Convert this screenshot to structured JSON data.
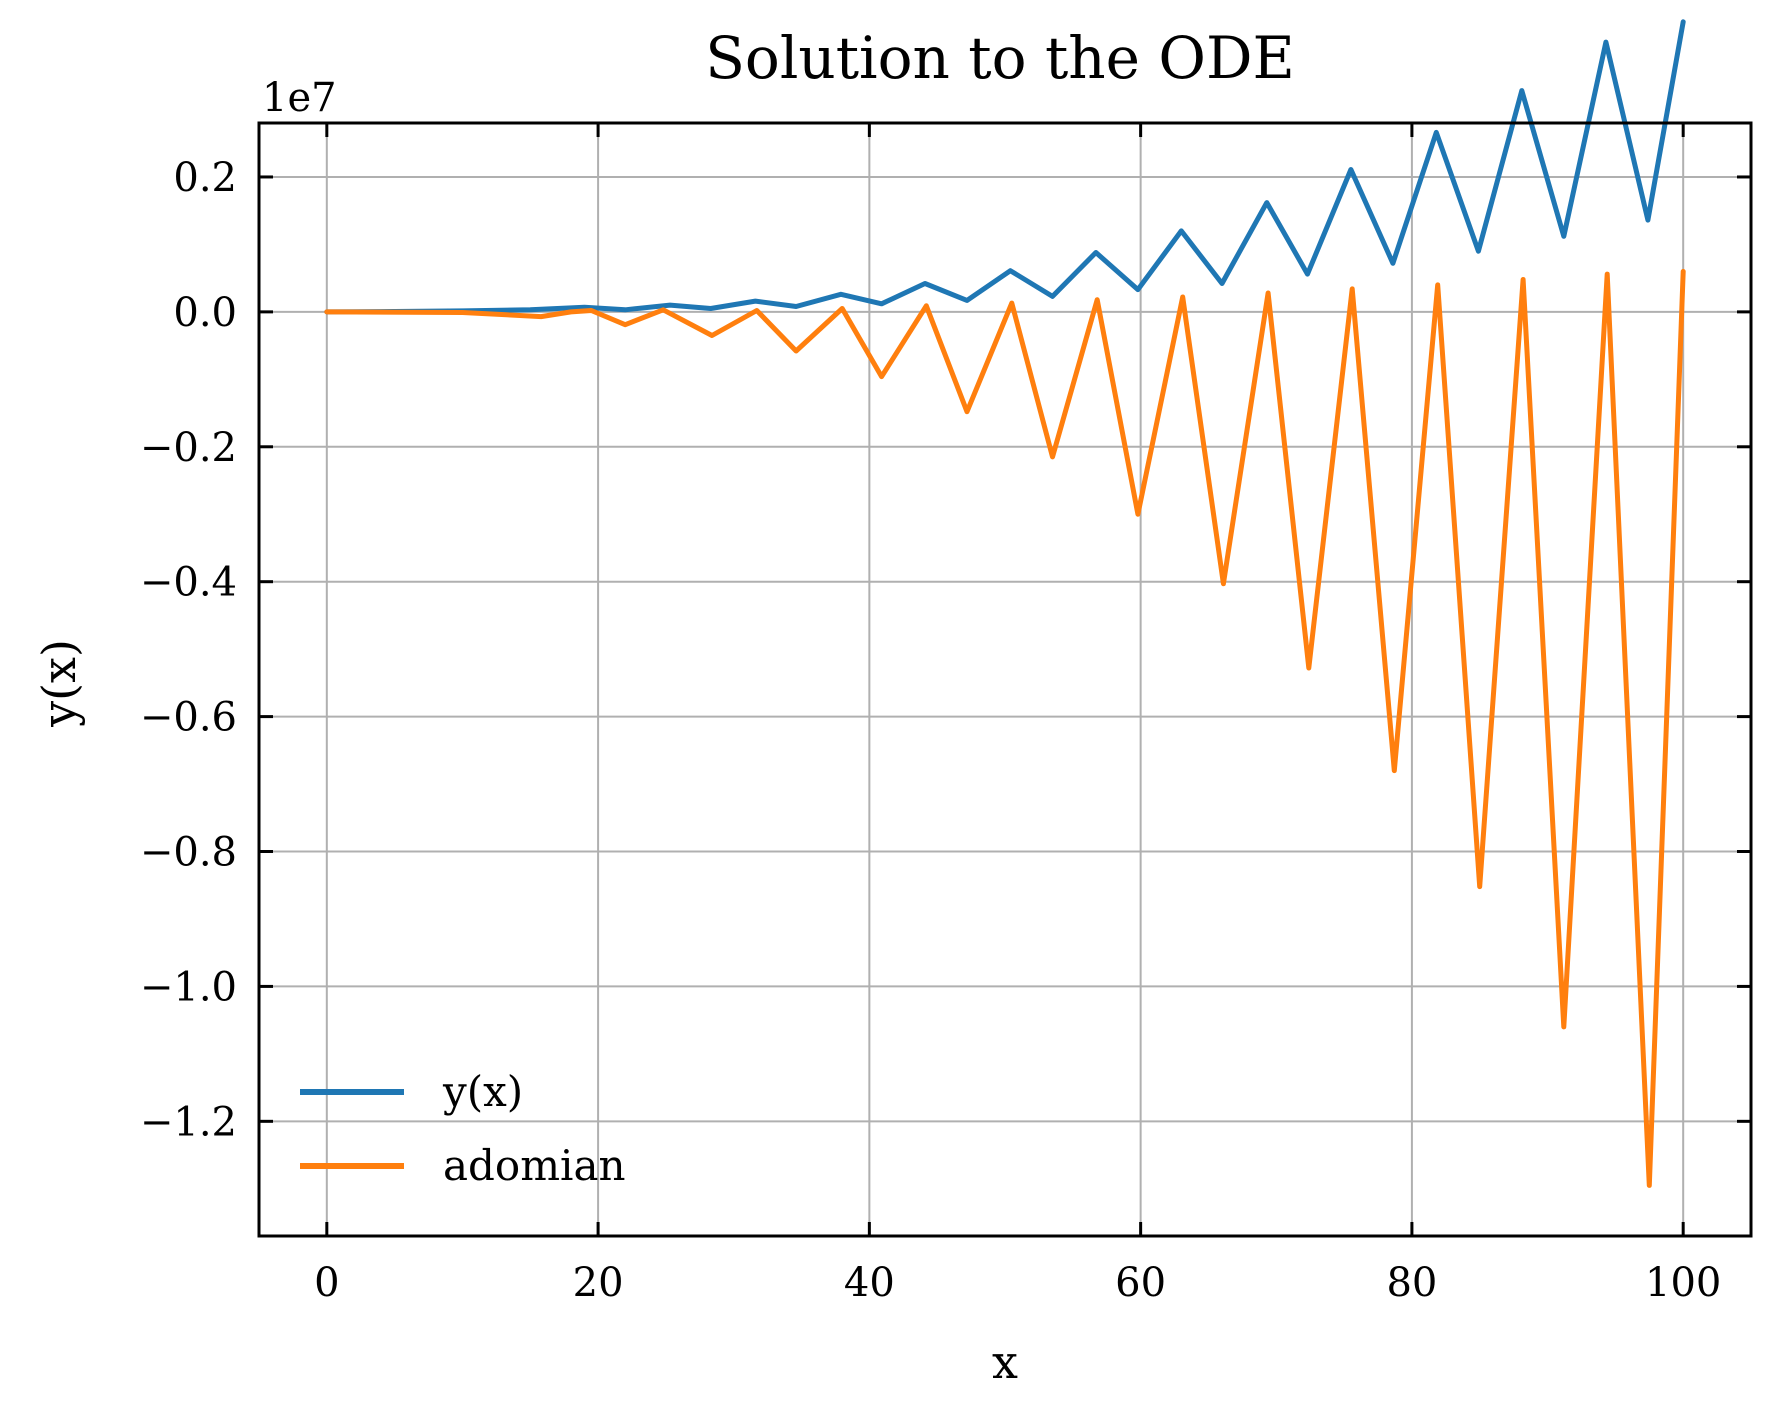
{
  "chart_data": {
    "type": "line",
    "title": "Solution to the ODE",
    "xlabel": "x",
    "ylabel": "y(x)",
    "y_offset_label": "1e7",
    "y_scale": 10000000,
    "xlim": [
      -5,
      105
    ],
    "ylim": [
      -13700000,
      2800000
    ],
    "x_ticks": [
      0,
      20,
      40,
      60,
      80,
      100
    ],
    "x_tick_labels": [
      "0",
      "20",
      "40",
      "60",
      "80",
      "100"
    ],
    "y_ticks": [
      2000000,
      0,
      -2000000,
      -4000000,
      -6000000,
      -8000000,
      -10000000,
      -12000000
    ],
    "y_tick_labels": [
      "0.2",
      "0.0",
      "−0.2",
      "−0.4",
      "−0.6",
      "−0.8",
      "−1.0",
      "−1.2"
    ],
    "grid": true,
    "legend_position": "lower-left",
    "series": [
      {
        "name": "y(x)",
        "color": "#1f77b4",
        "points": [
          [
            0,
            0
          ],
          [
            5,
            5000
          ],
          [
            10,
            15000
          ],
          [
            15,
            30000
          ],
          [
            19,
            70000
          ],
          [
            22,
            30000
          ],
          [
            25.3,
            100000
          ],
          [
            28.3,
            50000
          ],
          [
            31.6,
            160000
          ],
          [
            34.6,
            80000
          ],
          [
            37.9,
            260000
          ],
          [
            40.9,
            120000
          ],
          [
            44.1,
            420000
          ],
          [
            47.2,
            170000
          ],
          [
            50.4,
            610000
          ],
          [
            53.5,
            230000
          ],
          [
            56.7,
            880000
          ],
          [
            59.8,
            330000
          ],
          [
            63.0,
            1200000
          ],
          [
            66.0,
            420000
          ],
          [
            69.3,
            1620000
          ],
          [
            72.3,
            560000
          ],
          [
            75.5,
            2110000
          ],
          [
            78.6,
            720000
          ],
          [
            81.8,
            2660000
          ],
          [
            84.9,
            900000
          ],
          [
            88.1,
            3280000
          ],
          [
            91.2,
            1120000
          ],
          [
            94.3,
            4000000
          ],
          [
            97.4,
            1360000
          ],
          [
            100,
            4300000
          ]
        ]
      },
      {
        "name": "adomian",
        "color": "#ff7f0e",
        "points": [
          [
            0,
            0
          ],
          [
            10,
            -10000
          ],
          [
            15.8,
            -70000
          ],
          [
            18,
            0
          ],
          [
            19.5,
            20000
          ],
          [
            22,
            -190000
          ],
          [
            24.8,
            30000
          ],
          [
            28.4,
            -350000
          ],
          [
            31.7,
            20000
          ],
          [
            34.6,
            -580000
          ],
          [
            38,
            50000
          ],
          [
            40.9,
            -960000
          ],
          [
            44.2,
            90000
          ],
          [
            47.2,
            -1480000
          ],
          [
            50.5,
            130000
          ],
          [
            53.5,
            -2150000
          ],
          [
            56.8,
            180000
          ],
          [
            59.8,
            -3000000
          ],
          [
            63.1,
            220000
          ],
          [
            66.1,
            -4030000
          ],
          [
            69.4,
            280000
          ],
          [
            72.4,
            -5280000
          ],
          [
            75.6,
            340000
          ],
          [
            78.7,
            -6800000
          ],
          [
            81.9,
            400000
          ],
          [
            85.0,
            -8520000
          ],
          [
            88.2,
            480000
          ],
          [
            91.2,
            -10600000
          ],
          [
            94.4,
            560000
          ],
          [
            97.5,
            -12950000
          ],
          [
            100,
            600000
          ]
        ]
      }
    ]
  }
}
